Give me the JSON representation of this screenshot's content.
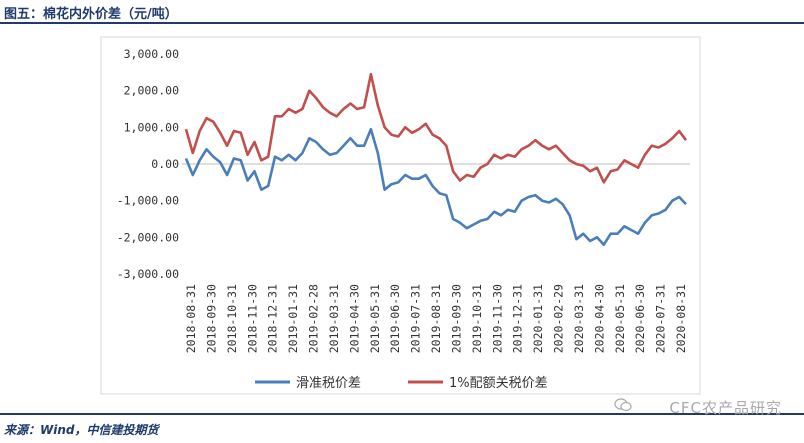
{
  "header": {
    "title": "图五：棉花内外价差（元/吨）"
  },
  "footer": {
    "source": "来源：Wind，中信建投期货",
    "watermark": "CFC农产品研究"
  },
  "chart_data": {
    "type": "line",
    "ylim": [
      -3000,
      3000
    ],
    "yticks": [
      3000,
      2000,
      1000,
      0,
      -1000,
      -2000,
      -3000
    ],
    "ytick_labels": [
      "3,000.00",
      "2,000.00",
      "1,000.00",
      "0.00",
      "-1,000.00",
      "-2,000.00",
      "-3,000.00"
    ],
    "x_tick_labels": [
      "2018-08-31",
      "2018-09-30",
      "2018-10-31",
      "2018-11-30",
      "2018-12-31",
      "2019-01-31",
      "2019-02-28",
      "2019-03-31",
      "2019-04-30",
      "2019-05-31",
      "2019-06-30",
      "2019-07-31",
      "2019-08-31",
      "2019-09-30",
      "2019-10-31",
      "2019-11-30",
      "2019-12-31",
      "2020-01-31",
      "2020-02-29",
      "2020-03-31",
      "2020-04-30",
      "2020-05-31",
      "2020-06-30",
      "2020-07-31",
      "2020-08-31"
    ],
    "legend_position": "bottom",
    "series": [
      {
        "name": "滑准税价差",
        "color": "#4a7ebb",
        "values": [
          150,
          -300,
          100,
          400,
          200,
          50,
          -300,
          150,
          100,
          -450,
          -200,
          -700,
          -600,
          200,
          100,
          250,
          100,
          300,
          700,
          600,
          400,
          250,
          300,
          500,
          700,
          500,
          500,
          950,
          300,
          -700,
          -550,
          -500,
          -300,
          -400,
          -400,
          -300,
          -600,
          -800,
          -850,
          -1500,
          -1600,
          -1750,
          -1650,
          -1550,
          -1500,
          -1300,
          -1400,
          -1250,
          -1300,
          -1000,
          -900,
          -850,
          -1000,
          -1050,
          -950,
          -1100,
          -1400,
          -2050,
          -1900,
          -2100,
          -2000,
          -2200,
          -1900,
          -1900,
          -1700,
          -1800,
          -1900,
          -1600,
          -1400,
          -1350,
          -1250,
          -1000,
          -900,
          -1100
        ]
      },
      {
        "name": "1%配额关税价差",
        "color": "#c0504d",
        "values": [
          950,
          300,
          900,
          1250,
          1150,
          850,
          500,
          900,
          850,
          250,
          600,
          100,
          200,
          1300,
          1300,
          1500,
          1400,
          1500,
          2000,
          1800,
          1550,
          1400,
          1300,
          1500,
          1650,
          1500,
          1550,
          2450,
          1600,
          1000,
          800,
          750,
          1000,
          850,
          950,
          1100,
          800,
          700,
          500,
          -200,
          -450,
          -300,
          -350,
          -100,
          0,
          250,
          150,
          250,
          200,
          400,
          500,
          650,
          500,
          400,
          500,
          300,
          100,
          0,
          -50,
          -200,
          -100,
          -500,
          -200,
          -150,
          100,
          0,
          -100,
          250,
          500,
          450,
          550,
          700,
          900,
          650
        ]
      }
    ]
  }
}
